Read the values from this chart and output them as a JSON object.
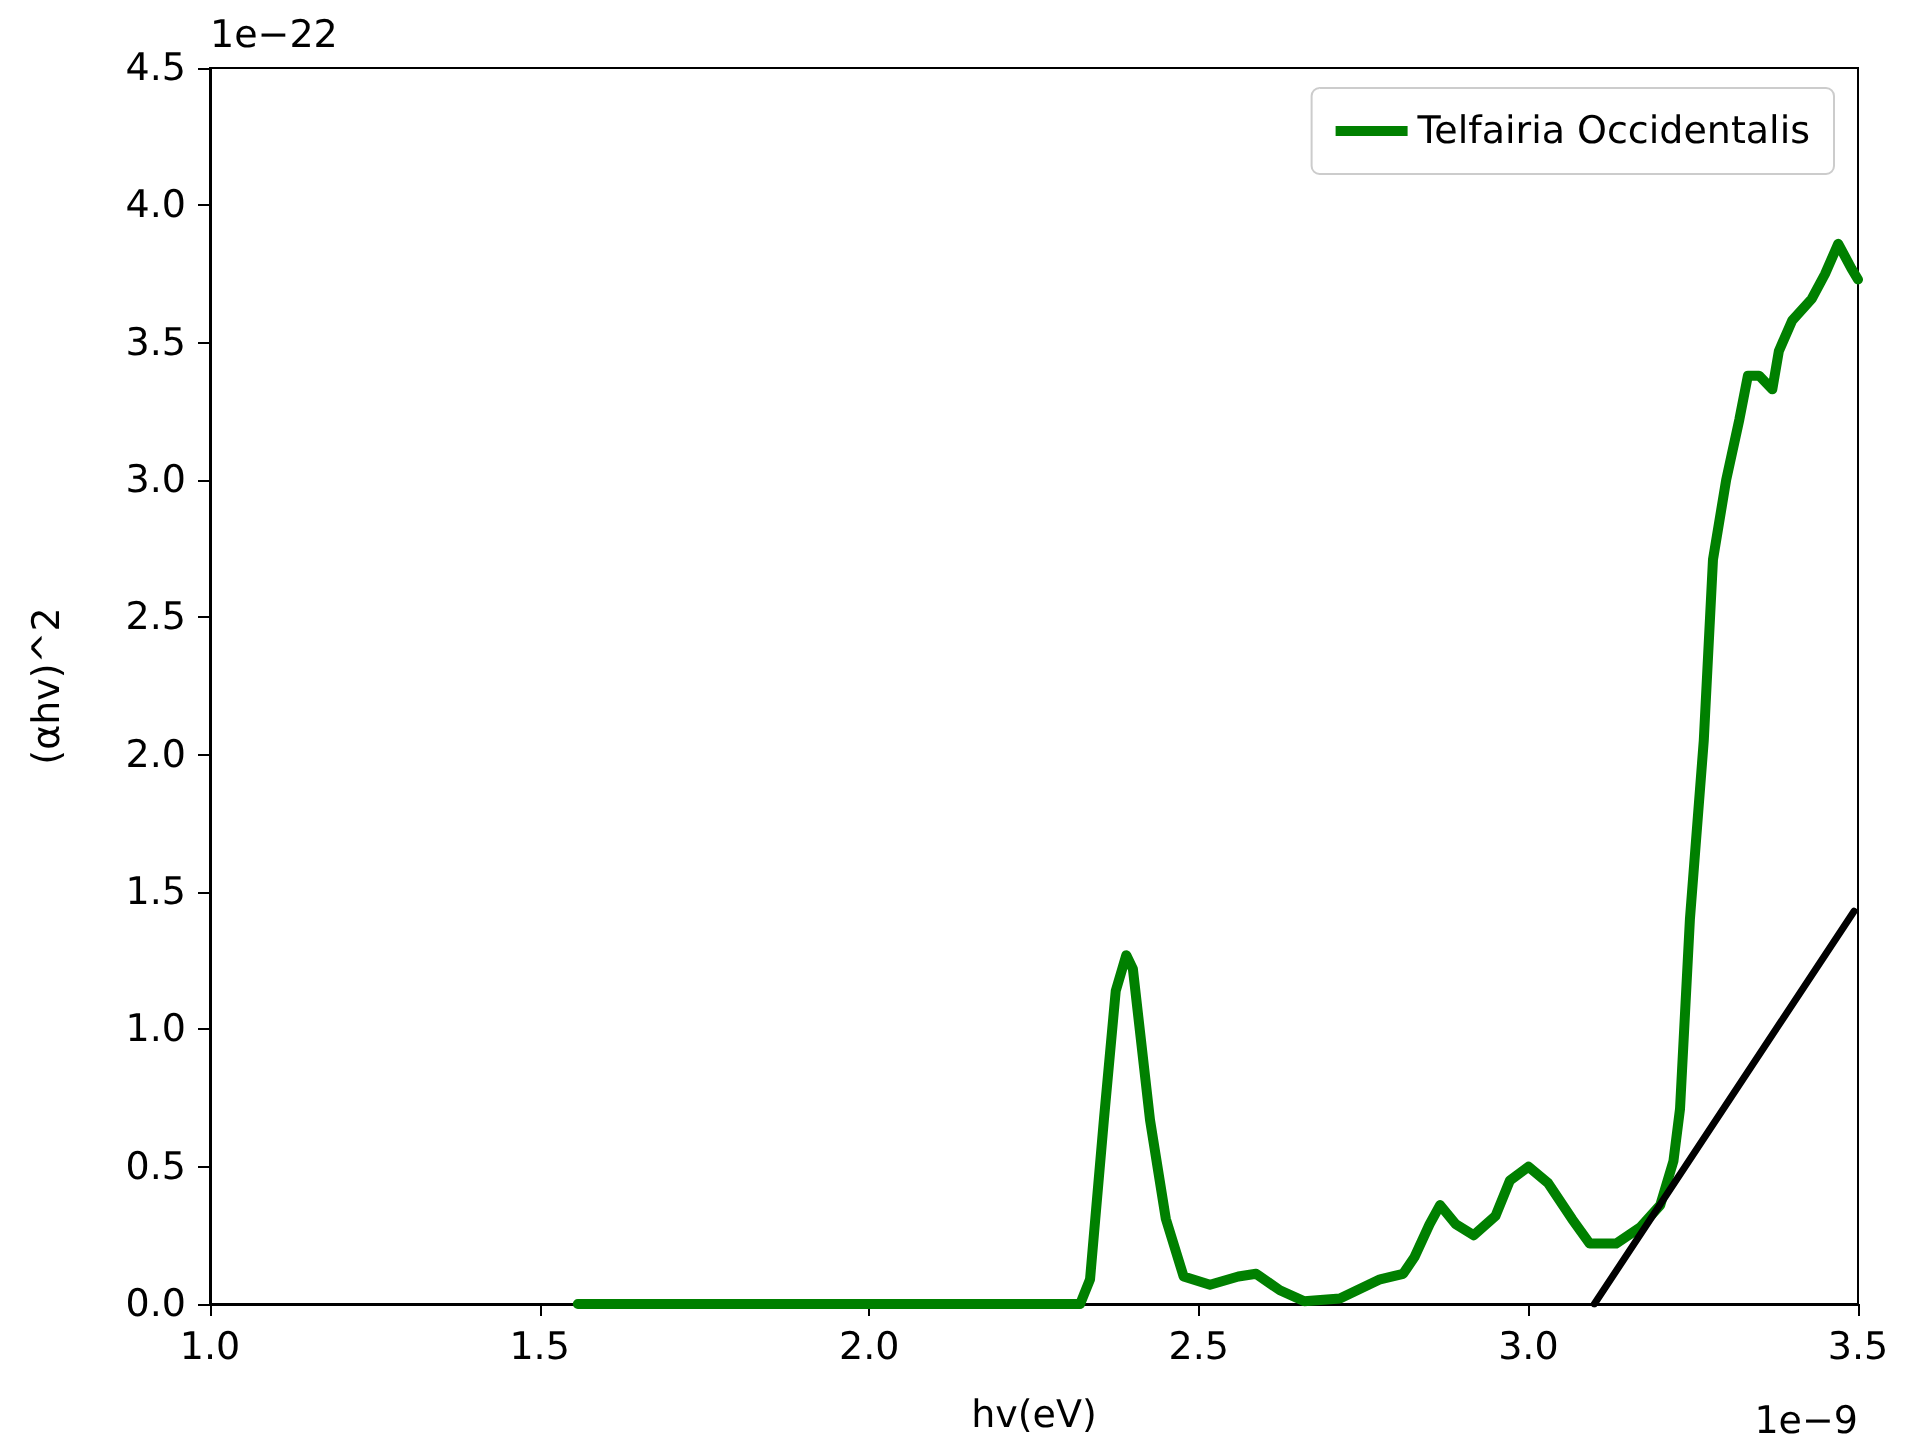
{
  "chart_data": {
    "type": "line",
    "xlabel": "hv(eV)",
    "ylabel": "(αhv)^2",
    "annotations": [
      "1e−22",
      "1e−9"
    ],
    "xlim": [
      1.0,
      3.5
    ],
    "xticks": [
      {
        "value": 1.0,
        "label": "1.0"
      },
      {
        "value": 1.5,
        "label": "1.5"
      },
      {
        "value": 2.0,
        "label": "2.0"
      },
      {
        "value": 2.5,
        "label": "2.5"
      },
      {
        "value": 3.0,
        "label": "3.0"
      },
      {
        "value": 3.5,
        "label": "3.5"
      }
    ],
    "ylim": [
      0,
      4.5
    ],
    "yticks": [
      {
        "value": 0,
        "label": "0.0"
      },
      {
        "value": 0.5,
        "label": "0.5"
      },
      {
        "value": 1.0,
        "label": "1.0"
      },
      {
        "value": 1.5,
        "label": "1.5"
      },
      {
        "value": 2.0,
        "label": "2.0"
      },
      {
        "value": 2.5,
        "label": "2.5"
      },
      {
        "value": 3.0,
        "label": "3.0"
      },
      {
        "value": 3.5,
        "label": "3.5"
      },
      {
        "value": 4.0,
        "label": "4.0"
      },
      {
        "value": 4.5,
        "label": "4.5"
      }
    ],
    "grid": false,
    "legend": "top right",
    "marker": "none",
    "line_style": "solid",
    "series": [
      {
        "name": "Telfairia Occidentalis",
        "color": "#008000",
        "x": [
          1.558,
          2.32,
          2.335,
          2.356,
          2.374,
          2.39,
          2.4,
          2.426,
          2.45,
          2.477,
          2.517,
          2.56,
          2.587,
          2.623,
          2.66,
          2.714,
          2.775,
          2.81,
          2.827,
          2.85,
          2.866,
          2.89,
          2.917,
          2.95,
          2.972,
          3.0,
          3.03,
          3.066,
          3.093,
          3.133,
          3.17,
          3.2,
          3.22,
          3.23,
          3.245,
          3.266,
          3.28,
          3.3,
          3.32,
          3.333,
          3.35,
          3.37,
          3.38,
          3.4,
          3.43,
          3.45,
          3.47,
          3.49,
          3.5
        ],
        "values": [
          0,
          0,
          0.09,
          0.67,
          1.14,
          1.27,
          1.22,
          0.67,
          0.31,
          0.1,
          0.07,
          0.1,
          0.11,
          0.05,
          0.01,
          0.02,
          0.09,
          0.11,
          0.17,
          0.29,
          0.36,
          0.29,
          0.25,
          0.32,
          0.45,
          0.5,
          0.44,
          0.31,
          0.22,
          0.22,
          0.28,
          0.36,
          0.52,
          0.71,
          1.4,
          2.05,
          2.71,
          3.0,
          3.22,
          3.38,
          3.38,
          3.33,
          3.47,
          3.58,
          3.66,
          3.75,
          3.86,
          3.77,
          3.73
        ]
      },
      {
        "type": "line",
        "color": "#000000",
        "x": [
          3.1,
          3.494
        ],
        "values": [
          0,
          1.43
        ]
      }
    ]
  }
}
